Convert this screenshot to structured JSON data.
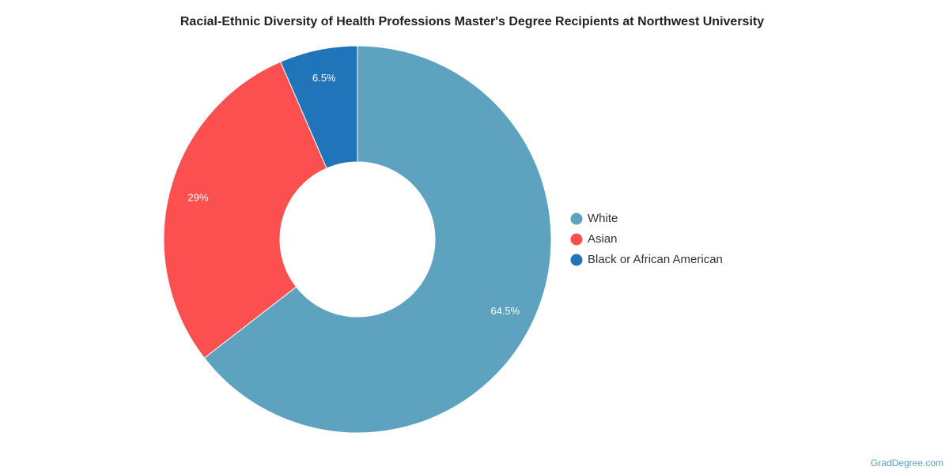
{
  "chart_data": {
    "type": "donut",
    "title": "Racial-Ethnic Diversity of Health Professions Master's Degree Recipients at Northwest University",
    "categories": [
      "White",
      "Asian",
      "Black or African American"
    ],
    "values": [
      64.5,
      29,
      6.5
    ],
    "value_labels": [
      "64.5%",
      "29%",
      "6.5%"
    ],
    "colors": [
      "#5da2be",
      "#fc5050",
      "#1f74ba"
    ],
    "legend": "right",
    "credit": "GradDegree.com"
  }
}
